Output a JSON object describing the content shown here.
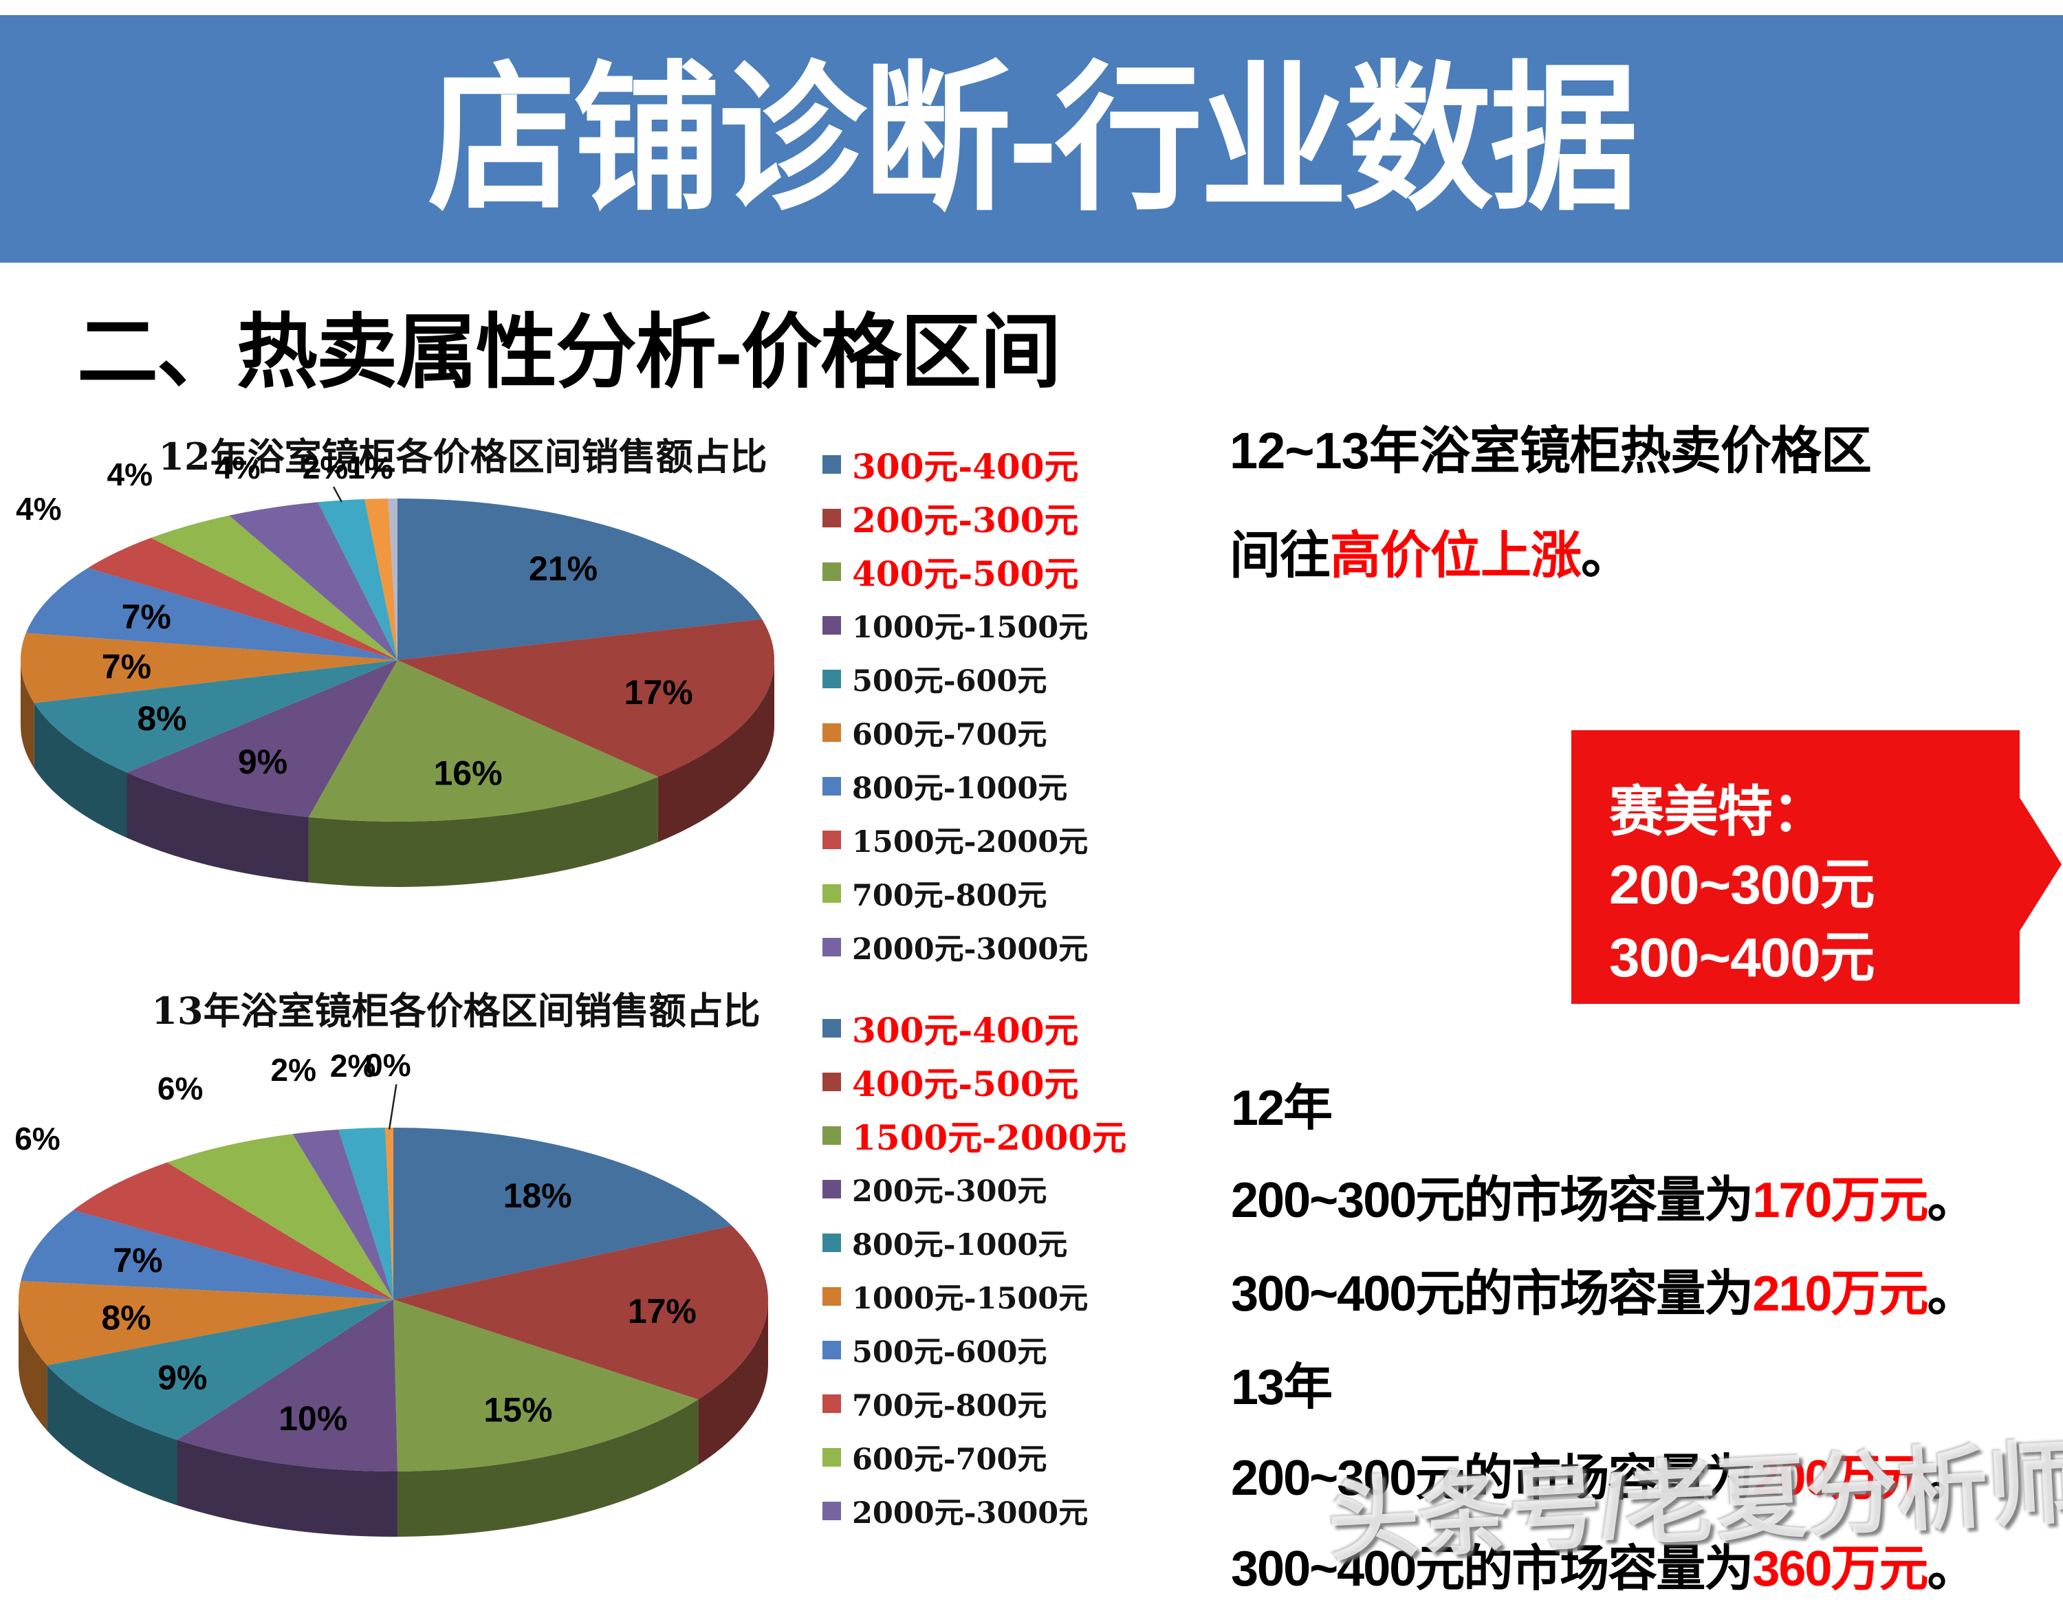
{
  "banner": {
    "title": "店铺诊断-行业数据",
    "bg_color": "#4B7EBB"
  },
  "section_heading": "二、热卖属性分析-价格区间",
  "chart_data": [
    {
      "type": "pie",
      "title": "12年浴室镜柜各价格区间销售额占比",
      "unit": "percent",
      "legend_position": "right",
      "legend_red_note": "top 3 legend entries shown in red",
      "slices": [
        {
          "name": "300元-400元",
          "value": 21,
          "label": "21%",
          "color": "#44719E",
          "in_legend": true,
          "legend_red": true
        },
        {
          "name": "200元-300元",
          "value": 17,
          "label": "17%",
          "color": "#A1413C",
          "in_legend": true,
          "legend_red": true
        },
        {
          "name": "400元-500元",
          "value": 16,
          "label": "16%",
          "color": "#7F9B49",
          "in_legend": true,
          "legend_red": true
        },
        {
          "name": "1000元-1500元",
          "value": 9,
          "label": "9%",
          "color": "#684E82",
          "in_legend": true,
          "legend_red": false
        },
        {
          "name": "500元-600元",
          "value": 8,
          "label": "8%",
          "color": "#37879B",
          "in_legend": true,
          "legend_red": false
        },
        {
          "name": "600元-700元",
          "value": 7,
          "label": "7%",
          "color": "#D07D2F",
          "in_legend": true,
          "legend_red": false
        },
        {
          "name": "800元-1000元",
          "value": 7,
          "label": "7%",
          "color": "#4F7EC1",
          "in_legend": true,
          "legend_red": false
        },
        {
          "name": "1500元-2000元",
          "value": 4,
          "label": "4%",
          "color": "#C34B48",
          "in_legend": true,
          "legend_red": false
        },
        {
          "name": "700元-800元",
          "value": 4,
          "label": "4%",
          "color": "#92B74C",
          "in_legend": true,
          "legend_red": false
        },
        {
          "name": "2000元-3000元",
          "value": 4,
          "label": "4%",
          "color": "#7763A2",
          "in_legend": true,
          "legend_red": false
        },
        {
          "name": "",
          "value": 2,
          "label": "2%",
          "color": "#3FA8C4",
          "in_legend": false,
          "legend_red": false,
          "leader": true
        },
        {
          "name": "",
          "value": 1,
          "label": "1%",
          "color": "#F0973F",
          "in_legend": false,
          "legend_red": false
        },
        {
          "name": "",
          "value": 0.4,
          "label": "",
          "color": "#B3B8CE",
          "in_legend": false,
          "legend_red": false
        }
      ]
    },
    {
      "type": "pie",
      "title": "13年浴室镜柜各价格区间销售额占比",
      "unit": "percent",
      "legend_position": "right",
      "legend_red_note": "top 3 legend entries shown in red",
      "slices": [
        {
          "name": "300元-400元",
          "value": 18,
          "label": "18%",
          "color": "#44719E",
          "in_legend": true,
          "legend_red": true
        },
        {
          "name": "400元-500元",
          "value": 17,
          "label": "17%",
          "color": "#A1413C",
          "in_legend": true,
          "legend_red": true
        },
        {
          "name": "1500元-2000元",
          "value": 15,
          "label": "15%",
          "color": "#7F9B49",
          "in_legend": true,
          "legend_red": true
        },
        {
          "name": "200元-300元",
          "value": 10,
          "label": "10%",
          "color": "#684E82",
          "in_legend": true,
          "legend_red": false
        },
        {
          "name": "800元-1000元",
          "value": 9,
          "label": "9%",
          "color": "#37879B",
          "in_legend": true,
          "legend_red": false
        },
        {
          "name": "1000元-1500元",
          "value": 8,
          "label": "8%",
          "color": "#D07D2F",
          "in_legend": true,
          "legend_red": false
        },
        {
          "name": "500元-600元",
          "value": 7,
          "label": "7%",
          "color": "#4F7EC1",
          "in_legend": true,
          "legend_red": false
        },
        {
          "name": "700元-800元",
          "value": 6,
          "label": "6%",
          "color": "#C34B48",
          "in_legend": true,
          "legend_red": false
        },
        {
          "name": "600元-700元",
          "value": 6,
          "label": "6%",
          "color": "#92B74C",
          "in_legend": true,
          "legend_red": false
        },
        {
          "name": "2000元-3000元",
          "value": 2,
          "label": "2%",
          "color": "#7763A2",
          "in_legend": true,
          "legend_red": false
        },
        {
          "name": "",
          "value": 2,
          "label": "2%",
          "color": "#3FA8C4",
          "in_legend": false,
          "legend_red": false
        },
        {
          "name": "",
          "value": 0.35,
          "label": "0%",
          "color": "#F0973F",
          "in_legend": false,
          "legend_red": false,
          "leader": true
        }
      ]
    }
  ],
  "right_panel": {
    "para_line1": "12~13年浴室镜柜热卖价格区",
    "para_line2_prefix": "间往",
    "para_line2_red": "高价位上涨",
    "para_line2_suffix": "。",
    "callout": {
      "line1": "赛美特：",
      "line2": "200~300元",
      "line3": "300~400元",
      "bg_color": "#EE1111",
      "text_color": "#FFFFFF"
    },
    "stats": [
      {
        "label": "12年"
      },
      {
        "prefix": "200~300元的市场容量为",
        "red": "170万元",
        "suffix": "。"
      },
      {
        "prefix": "300~400元的市场容量为",
        "red": "210万元",
        "suffix": "。"
      },
      {
        "label": "13年"
      },
      {
        "prefix": "200~300元的市场容量为",
        "red": "200万元",
        "suffix": "。"
      },
      {
        "prefix": "300~400元的市场容量为",
        "red": "360万元",
        "suffix": "。"
      }
    ]
  },
  "watermark": "头条号/老夏分析师",
  "accent_colors": {
    "highlight_red": "#FE0000",
    "banner_blue": "#4B7EBB",
    "callout_red": "#EE1111"
  }
}
